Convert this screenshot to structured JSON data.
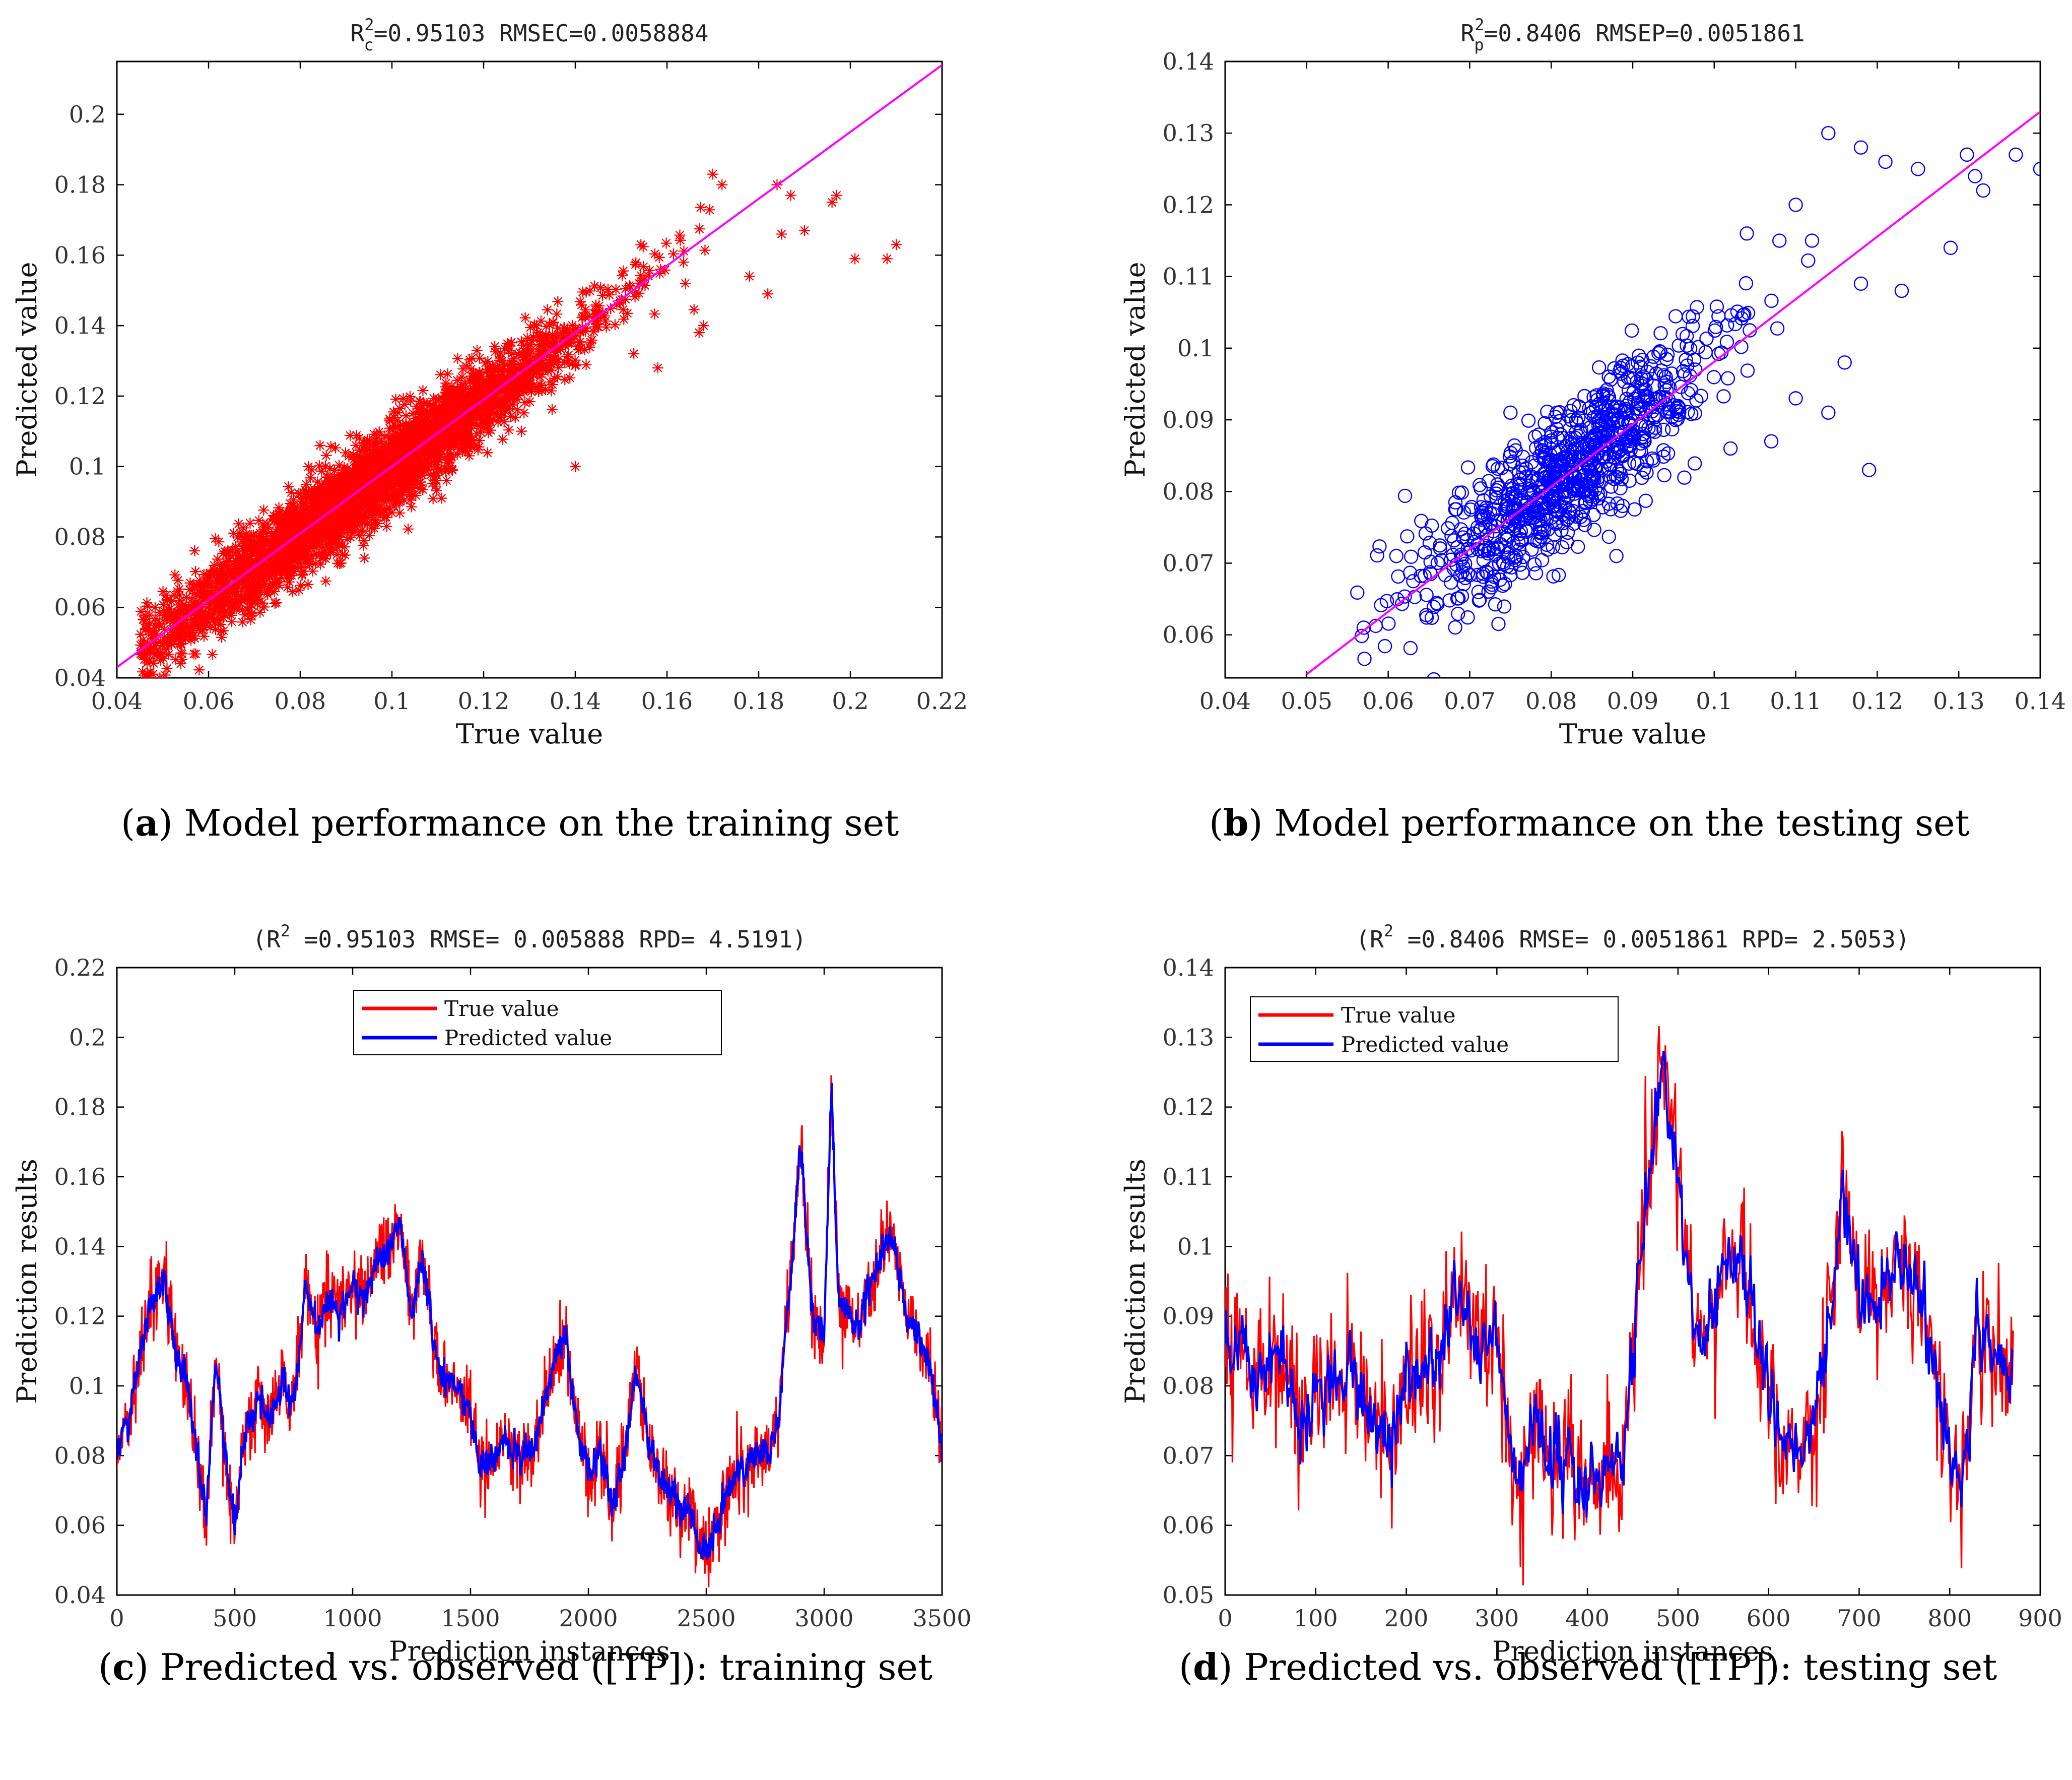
{
  "chart_data": [
    {
      "id": "a",
      "type": "scatter",
      "title": "R_c^2=0.95103   RMSEC=0.0058884",
      "title_parts": {
        "r": "R",
        "sup": "2",
        "sub": "c",
        "rest": "=0.95103   RMSEC=0.0058884"
      },
      "xlabel": "True value",
      "ylabel": "Predicted value",
      "xlim": [
        0.04,
        0.22
      ],
      "ylim": [
        0.04,
        0.215
      ],
      "xticks": [
        0.04,
        0.06,
        0.08,
        0.1,
        0.12,
        0.14,
        0.16,
        0.18,
        0.2,
        0.22
      ],
      "xtick_labels": [
        "0.04",
        "0.06",
        "0.08",
        "0.1",
        "0.12",
        "0.14",
        "0.16",
        "0.18",
        "0.2",
        "0.22"
      ],
      "yticks": [
        0.04,
        0.06,
        0.08,
        0.1,
        0.12,
        0.14,
        0.16,
        0.18,
        0.2
      ],
      "ytick_labels": [
        "0.04",
        "0.06",
        "0.08",
        "0.1",
        "0.12",
        "0.14",
        "0.16",
        "0.18",
        "0.2"
      ],
      "marker": "asterisk",
      "marker_color": "#ff0000",
      "fit_line": {
        "x": [
          0.04,
          0.22
        ],
        "y": [
          0.043,
          0.214
        ],
        "color": "#ff00ff"
      },
      "n_points": 3500,
      "outliers": [
        {
          "x": 0.184,
          "y": 0.18
        },
        {
          "x": 0.197,
          "y": 0.177
        },
        {
          "x": 0.196,
          "y": 0.175
        },
        {
          "x": 0.21,
          "y": 0.163
        },
        {
          "x": 0.208,
          "y": 0.159
        },
        {
          "x": 0.201,
          "y": 0.159
        },
        {
          "x": 0.187,
          "y": 0.177
        },
        {
          "x": 0.185,
          "y": 0.166
        },
        {
          "x": 0.19,
          "y": 0.167
        },
        {
          "x": 0.178,
          "y": 0.154
        },
        {
          "x": 0.182,
          "y": 0.149
        },
        {
          "x": 0.17,
          "y": 0.183
        },
        {
          "x": 0.172,
          "y": 0.18
        },
        {
          "x": 0.168,
          "y": 0.14
        },
        {
          "x": 0.167,
          "y": 0.138
        },
        {
          "x": 0.164,
          "y": 0.152
        },
        {
          "x": 0.14,
          "y": 0.1
        },
        {
          "x": 0.158,
          "y": 0.128
        },
        {
          "x": 0.098,
          "y": 0.087
        },
        {
          "x": 0.096,
          "y": 0.085
        },
        {
          "x": 0.094,
          "y": 0.074
        },
        {
          "x": 0.088,
          "y": 0.075
        },
        {
          "x": 0.055,
          "y": 0.051
        },
        {
          "x": 0.048,
          "y": 0.052
        }
      ],
      "caption_label": "a",
      "caption_text": " Model performance on the training set"
    },
    {
      "id": "b",
      "type": "scatter",
      "title": "R_p^2=0.8406   RMSEP=0.0051861",
      "title_parts": {
        "r": "R",
        "sup": "2",
        "sub": "p",
        "rest": "=0.8406   RMSEP=0.0051861"
      },
      "xlabel": "True value",
      "ylabel": "Predicted value",
      "xlim": [
        0.04,
        0.14
      ],
      "ylim": [
        0.054,
        0.14
      ],
      "xticks": [
        0.04,
        0.05,
        0.06,
        0.07,
        0.08,
        0.09,
        0.1,
        0.11,
        0.12,
        0.13,
        0.14
      ],
      "xtick_labels": [
        "0.04",
        "0.05",
        "0.06",
        "0.07",
        "0.08",
        "0.09",
        "0.1",
        "0.11",
        "0.12",
        "0.13",
        "0.14"
      ],
      "yticks": [
        0.06,
        0.07,
        0.08,
        0.09,
        0.1,
        0.11,
        0.12,
        0.13,
        0.14
      ],
      "ytick_labels": [
        "0.06",
        "0.07",
        "0.08",
        "0.09",
        "0.1",
        "0.11",
        "0.12",
        "0.13",
        "0.14"
      ],
      "marker": "circle",
      "marker_color": "#0000ff",
      "fit_line": {
        "x": [
          0.05,
          0.14
        ],
        "y": [
          0.0545,
          0.133
        ],
        "color": "#ff00ff"
      },
      "n_points": 870,
      "outliers": [
        {
          "x": 0.114,
          "y": 0.13
        },
        {
          "x": 0.137,
          "y": 0.127
        },
        {
          "x": 0.14,
          "y": 0.125
        },
        {
          "x": 0.131,
          "y": 0.127
        },
        {
          "x": 0.132,
          "y": 0.124
        },
        {
          "x": 0.133,
          "y": 0.122
        },
        {
          "x": 0.125,
          "y": 0.125
        },
        {
          "x": 0.121,
          "y": 0.126
        },
        {
          "x": 0.118,
          "y": 0.128
        },
        {
          "x": 0.129,
          "y": 0.114
        },
        {
          "x": 0.123,
          "y": 0.108
        },
        {
          "x": 0.118,
          "y": 0.109
        },
        {
          "x": 0.119,
          "y": 0.083
        },
        {
          "x": 0.114,
          "y": 0.091
        },
        {
          "x": 0.107,
          "y": 0.087
        },
        {
          "x": 0.102,
          "y": 0.086
        },
        {
          "x": 0.11,
          "y": 0.093
        },
        {
          "x": 0.116,
          "y": 0.098
        },
        {
          "x": 0.112,
          "y": 0.115
        },
        {
          "x": 0.108,
          "y": 0.115
        },
        {
          "x": 0.104,
          "y": 0.116
        },
        {
          "x": 0.11,
          "y": 0.12
        },
        {
          "x": 0.057,
          "y": 0.061
        },
        {
          "x": 0.061,
          "y": 0.071
        },
        {
          "x": 0.088,
          "y": 0.071
        },
        {
          "x": 0.075,
          "y": 0.091
        }
      ],
      "caption_label": "b",
      "caption_text": " Model performance on the testing set"
    },
    {
      "id": "c",
      "type": "line",
      "title": "(R^2 =0.95103 RMSE= 0.005888 RPD= 4.5191)",
      "title_parts": {
        "pre": "(R",
        "sup": "2",
        "rest": " =0.95103 RMSE= 0.005888 RPD= 4.5191)"
      },
      "xlabel": "Prediction instances",
      "ylabel": "Prediction results",
      "xlim": [
        0,
        3500
      ],
      "ylim": [
        0.04,
        0.22
      ],
      "xticks": [
        0,
        500,
        1000,
        1500,
        2000,
        2500,
        3000,
        3500
      ],
      "xtick_labels": [
        "0",
        "500",
        "1000",
        "1500",
        "2000",
        "2500",
        "3000",
        "3500"
      ],
      "yticks": [
        0.04,
        0.06,
        0.08,
        0.1,
        0.12,
        0.14,
        0.16,
        0.18,
        0.2,
        0.22
      ],
      "ytick_labels": [
        "0.04",
        "0.06",
        "0.08",
        "0.1",
        "0.12",
        "0.14",
        "0.16",
        "0.18",
        "0.2",
        "0.22"
      ],
      "legend": {
        "placement": "top-center",
        "entries": [
          "True value",
          "Predicted value"
        ]
      },
      "series": [
        {
          "name": "True value",
          "color": "#ff0000"
        },
        {
          "name": "Predicted value",
          "color": "#0000ff"
        }
      ],
      "n_points": 3500,
      "trend": {
        "x": [
          0,
          50,
          100,
          150,
          200,
          250,
          300,
          350,
          380,
          420,
          450,
          500,
          550,
          600,
          650,
          700,
          750,
          800,
          850,
          900,
          950,
          1000,
          1050,
          1100,
          1150,
          1200,
          1250,
          1300,
          1350,
          1400,
          1450,
          1500,
          1550,
          1600,
          1650,
          1700,
          1750,
          1800,
          1850,
          1900,
          1950,
          2000,
          2050,
          2100,
          2150,
          2200,
          2250,
          2300,
          2350,
          2400,
          2450,
          2500,
          2550,
          2600,
          2650,
          2700,
          2750,
          2800,
          2850,
          2900,
          2950,
          3000,
          3030,
          3060,
          3100,
          3150,
          3200,
          3250,
          3300,
          3350,
          3400,
          3450,
          3500
        ],
        "y": [
          0.082,
          0.09,
          0.11,
          0.125,
          0.13,
          0.11,
          0.1,
          0.075,
          0.062,
          0.11,
          0.085,
          0.06,
          0.09,
          0.095,
          0.09,
          0.1,
          0.095,
          0.13,
          0.115,
          0.125,
          0.12,
          0.13,
          0.125,
          0.135,
          0.14,
          0.148,
          0.12,
          0.135,
          0.11,
          0.1,
          0.1,
          0.09,
          0.075,
          0.08,
          0.085,
          0.08,
          0.08,
          0.09,
          0.105,
          0.115,
          0.09,
          0.075,
          0.08,
          0.065,
          0.078,
          0.105,
          0.085,
          0.075,
          0.07,
          0.065,
          0.06,
          0.05,
          0.06,
          0.072,
          0.075,
          0.08,
          0.082,
          0.085,
          0.125,
          0.17,
          0.12,
          0.115,
          0.185,
          0.125,
          0.12,
          0.118,
          0.13,
          0.14,
          0.142,
          0.118,
          0.115,
          0.105,
          0.08
        ]
      },
      "caption_label": "c",
      "caption_text": " Predicted vs. observed ([TP]): training set"
    },
    {
      "id": "d",
      "type": "line",
      "title": "(R^2 =0.8406 RMSE= 0.0051861 RPD= 2.5053)",
      "title_parts": {
        "pre": "(R",
        "sup": "2",
        "rest": " =0.8406 RMSE= 0.0051861 RPD= 2.5053)"
      },
      "xlabel": "Prediction instances",
      "ylabel": "Prediction results",
      "xlim": [
        0,
        900
      ],
      "ylim": [
        0.05,
        0.14
      ],
      "xticks": [
        0,
        100,
        200,
        300,
        400,
        500,
        600,
        700,
        800,
        900
      ],
      "xtick_labels": [
        "0",
        "100",
        "200",
        "300",
        "400",
        "500",
        "600",
        "700",
        "800",
        "900"
      ],
      "yticks": [
        0.05,
        0.06,
        0.07,
        0.08,
        0.09,
        0.1,
        0.11,
        0.12,
        0.13,
        0.14
      ],
      "ytick_labels": [
        "0.05",
        "0.06",
        "0.07",
        "0.08",
        "0.09",
        "0.1",
        "0.11",
        "0.12",
        "0.13",
        "0.14"
      ],
      "legend": {
        "placement": "top-left",
        "entries": [
          "True value",
          "Predicted value"
        ]
      },
      "series": [
        {
          "name": "True value",
          "color": "#ff0000"
        },
        {
          "name": "Predicted value",
          "color": "#0000ff"
        }
      ],
      "n_points": 870,
      "trend": {
        "x": [
          0,
          20,
          40,
          60,
          80,
          100,
          120,
          140,
          160,
          180,
          200,
          220,
          240,
          260,
          280,
          300,
          320,
          340,
          360,
          380,
          400,
          420,
          440,
          460,
          480,
          500,
          520,
          540,
          560,
          580,
          600,
          620,
          640,
          660,
          680,
          700,
          720,
          740,
          760,
          780,
          800,
          815,
          830,
          850,
          870
        ],
        "y": [
          0.085,
          0.086,
          0.08,
          0.084,
          0.072,
          0.078,
          0.08,
          0.082,
          0.075,
          0.07,
          0.08,
          0.083,
          0.085,
          0.095,
          0.085,
          0.086,
          0.068,
          0.075,
          0.072,
          0.07,
          0.065,
          0.068,
          0.07,
          0.1,
          0.125,
          0.11,
          0.088,
          0.092,
          0.098,
          0.095,
          0.078,
          0.07,
          0.072,
          0.08,
          0.105,
          0.095,
          0.09,
          0.098,
          0.095,
          0.085,
          0.072,
          0.066,
          0.09,
          0.084,
          0.082
        ]
      },
      "caption_label": "d",
      "caption_text": " Predicted vs. observed ([TP]): testing set"
    }
  ]
}
